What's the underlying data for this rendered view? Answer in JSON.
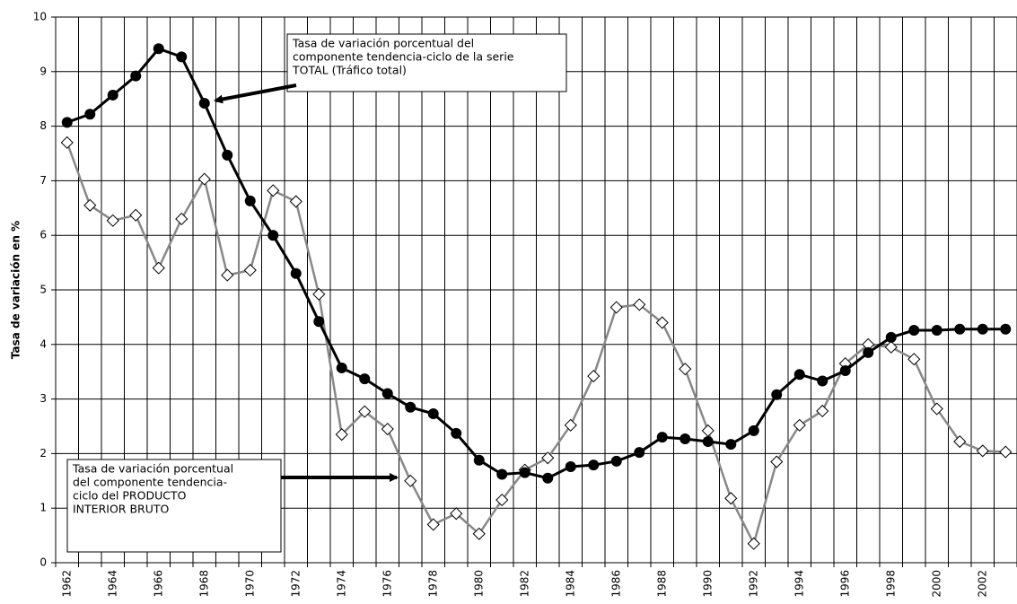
{
  "chart_data": {
    "type": "line",
    "ylabel": "Tasa de variación en %",
    "categories": [
      "1962",
      null,
      "1964",
      null,
      "1966",
      null,
      "1968",
      null,
      "1970",
      null,
      "1972",
      null,
      "1974",
      null,
      "1976",
      null,
      "1978",
      null,
      "1980",
      null,
      "1982",
      null,
      "1984",
      null,
      "1986",
      null,
      "1988",
      null,
      "1990",
      null,
      "1992",
      null,
      "1994",
      null,
      "1996",
      null,
      "1998",
      null,
      "2000",
      null,
      "2002",
      null
    ],
    "series": [
      {
        "color": "#000000",
        "marker": "circle",
        "values": [
          8.07,
          8.22,
          8.57,
          8.92,
          9.42,
          9.27,
          8.42,
          7.47,
          6.63,
          6.0,
          5.3,
          4.42,
          3.57,
          3.37,
          3.1,
          2.85,
          2.73,
          2.37,
          1.88,
          1.62,
          1.65,
          1.55,
          1.76,
          1.79,
          1.86,
          2.02,
          2.3,
          2.27,
          2.22,
          2.17,
          2.42,
          3.08,
          3.45,
          3.33,
          3.52,
          3.85,
          4.13,
          4.26,
          4.26,
          4.28,
          4.28,
          4.28
        ]
      },
      {
        "color": "#888888",
        "marker": "diamond",
        "values": [
          7.7,
          6.55,
          6.27,
          6.37,
          5.4,
          6.3,
          7.03,
          5.27,
          5.36,
          6.82,
          6.62,
          4.92,
          2.35,
          2.77,
          2.45,
          1.5,
          0.7,
          0.9,
          0.53,
          1.15,
          1.7,
          1.92,
          2.52,
          3.42,
          4.68,
          4.73,
          4.4,
          3.55,
          2.42,
          1.18,
          0.35,
          1.85,
          2.52,
          2.78,
          3.65,
          4.0,
          3.95,
          3.73,
          2.82,
          2.22,
          2.05,
          2.03
        ]
      }
    ],
    "ylim": [
      0,
      10
    ],
    "yticks": [
      0,
      1,
      2,
      3,
      4,
      5,
      6,
      7,
      8,
      9,
      10
    ],
    "grid": true,
    "annotations": [
      {
        "lines": [
          "Tasa de variación porcentual del",
          "componente tendencia-ciclo de la serie",
          "TOTAL (Tráfico total)"
        ]
      },
      {
        "lines": [
          "Tasa de variación porcentual",
          "del componente tendencia-",
          "ciclo del PRODUCTO",
          "INTERIOR BRUTO"
        ]
      }
    ]
  }
}
